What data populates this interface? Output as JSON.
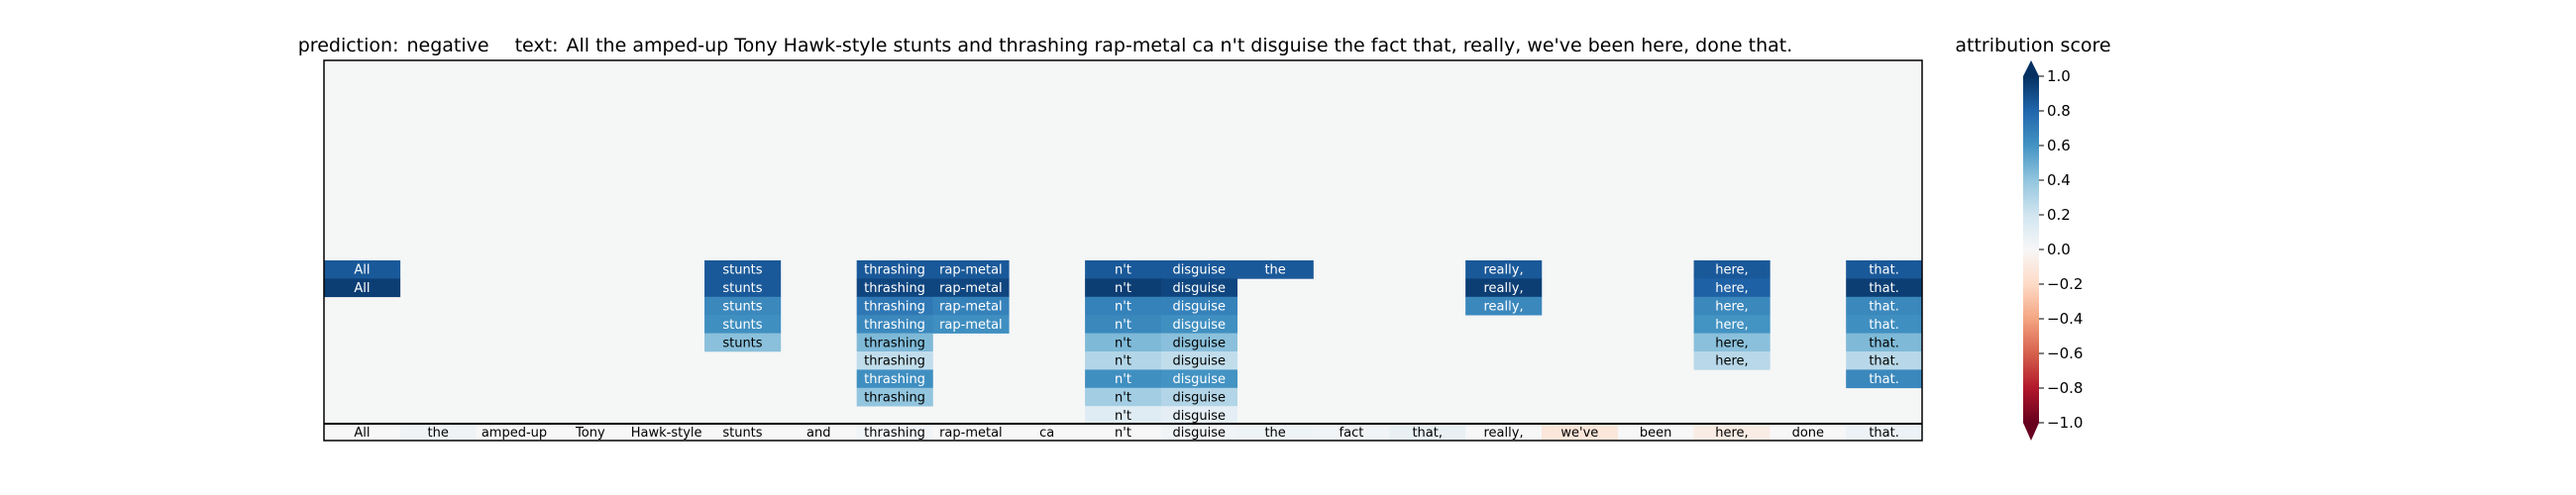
{
  "chart_data": {
    "type": "heatmap",
    "title_prediction_label": "prediction:",
    "title_prediction_value": "negative",
    "title_text_label": "text:",
    "title_text_value": "All the amped-up Tony Hawk-style stunts and thrashing rap-metal ca n't disguise the fact that, really, we've been here, done that.",
    "tokens": [
      "All",
      "the",
      "amped-up",
      "Tony",
      "Hawk-style",
      "stunts",
      "and",
      "thrashing",
      "rap-metal",
      "ca",
      "n't",
      "disguise",
      "the",
      "fact",
      "that,",
      "really,",
      "we've",
      "been",
      "here,",
      "done",
      "that."
    ],
    "baseline_scores": [
      0.0,
      0.04,
      0.0,
      0.0,
      0.0,
      0.0,
      0.0,
      0.03,
      0.0,
      0.0,
      0.0,
      0.03,
      0.05,
      0.03,
      0.08,
      0.0,
      -0.12,
      0.0,
      -0.08,
      0.0,
      0.06
    ],
    "rows": [
      {
        "index": 0,
        "cells": [
          {
            "token": "All",
            "col": 0,
            "value": 0.85
          },
          {
            "token": "stunts",
            "col": 5,
            "value": 0.85
          },
          {
            "token": "thrashing",
            "col": 7,
            "value": 0.85
          },
          {
            "token": "rap-metal",
            "col": 8,
            "value": 0.85
          },
          {
            "token": "n't",
            "col": 10,
            "value": 0.85
          },
          {
            "token": "disguise",
            "col": 11,
            "value": 0.85
          },
          {
            "token": "the",
            "col": 12,
            "value": 0.85
          },
          {
            "token": "really,",
            "col": 15,
            "value": 0.85
          },
          {
            "token": "here,",
            "col": 18,
            "value": 0.85
          },
          {
            "token": "that.",
            "col": 20,
            "value": 0.85
          }
        ]
      },
      {
        "index": 1,
        "cells": [
          {
            "token": "All",
            "col": 0,
            "value": 0.95
          },
          {
            "token": "stunts",
            "col": 5,
            "value": 0.85
          },
          {
            "token": "thrashing",
            "col": 7,
            "value": 0.92
          },
          {
            "token": "rap-metal",
            "col": 8,
            "value": 0.92
          },
          {
            "token": "n't",
            "col": 10,
            "value": 0.95
          },
          {
            "token": "disguise",
            "col": 11,
            "value": 0.92
          },
          {
            "token": "really,",
            "col": 15,
            "value": 0.95
          },
          {
            "token": "here,",
            "col": 18,
            "value": 0.82
          },
          {
            "token": "that.",
            "col": 20,
            "value": 0.95
          }
        ]
      },
      {
        "index": 2,
        "cells": [
          {
            "token": "stunts",
            "col": 5,
            "value": 0.65
          },
          {
            "token": "thrashing",
            "col": 7,
            "value": 0.72
          },
          {
            "token": "rap-metal",
            "col": 8,
            "value": 0.68
          },
          {
            "token": "n't",
            "col": 10,
            "value": 0.68
          },
          {
            "token": "disguise",
            "col": 11,
            "value": 0.68
          },
          {
            "token": "really,",
            "col": 15,
            "value": 0.65
          },
          {
            "token": "here,",
            "col": 18,
            "value": 0.65
          },
          {
            "token": "that.",
            "col": 20,
            "value": 0.65
          }
        ]
      },
      {
        "index": 3,
        "cells": [
          {
            "token": "stunts",
            "col": 5,
            "value": 0.62
          },
          {
            "token": "thrashing",
            "col": 7,
            "value": 0.65
          },
          {
            "token": "rap-metal",
            "col": 8,
            "value": 0.62
          },
          {
            "token": "n't",
            "col": 10,
            "value": 0.65
          },
          {
            "token": "disguise",
            "col": 11,
            "value": 0.62
          },
          {
            "token": "here,",
            "col": 18,
            "value": 0.6
          },
          {
            "token": "that.",
            "col": 20,
            "value": 0.62
          }
        ]
      },
      {
        "index": 4,
        "cells": [
          {
            "token": "stunts",
            "col": 5,
            "value": 0.42
          },
          {
            "token": "thrashing",
            "col": 7,
            "value": 0.45
          },
          {
            "token": "n't",
            "col": 10,
            "value": 0.45
          },
          {
            "token": "disguise",
            "col": 11,
            "value": 0.42
          },
          {
            "token": "here,",
            "col": 18,
            "value": 0.42
          },
          {
            "token": "that.",
            "col": 20,
            "value": 0.45
          }
        ]
      },
      {
        "index": 5,
        "cells": [
          {
            "token": "thrashing",
            "col": 7,
            "value": 0.25
          },
          {
            "token": "n't",
            "col": 10,
            "value": 0.3
          },
          {
            "token": "disguise",
            "col": 11,
            "value": 0.25
          },
          {
            "token": "here,",
            "col": 18,
            "value": 0.28
          },
          {
            "token": "that.",
            "col": 20,
            "value": 0.28
          }
        ]
      },
      {
        "index": 6,
        "cells": [
          {
            "token": "thrashing",
            "col": 7,
            "value": 0.62
          },
          {
            "token": "n't",
            "col": 10,
            "value": 0.62
          },
          {
            "token": "disguise",
            "col": 11,
            "value": 0.6
          },
          {
            "token": "that.",
            "col": 20,
            "value": 0.65
          }
        ]
      },
      {
        "index": 7,
        "cells": [
          {
            "token": "thrashing",
            "col": 7,
            "value": 0.4
          },
          {
            "token": "n't",
            "col": 10,
            "value": 0.35
          },
          {
            "token": "disguise",
            "col": 11,
            "value": 0.3
          }
        ]
      },
      {
        "index": 8,
        "cells": [
          {
            "token": "n't",
            "col": 10,
            "value": 0.12
          },
          {
            "token": "disguise",
            "col": 11,
            "value": 0.1
          }
        ]
      }
    ],
    "num_rows": 20,
    "colorbar": {
      "title": "attribution score",
      "range": [
        -1.0,
        1.0
      ],
      "ticks": [
        -1.0,
        -0.8,
        -0.6,
        -0.4,
        -0.2,
        0.0,
        0.2,
        0.4,
        0.6,
        0.8,
        1.0
      ],
      "tick_labels": [
        "−1.0",
        "−0.8",
        "−0.6",
        "−0.4",
        "−0.2",
        "0.0",
        "0.2",
        "0.4",
        "0.6",
        "0.8",
        "1.0"
      ],
      "colormap": "RdBu",
      "extend": "both"
    },
    "background_color": "#f5f6f6"
  }
}
